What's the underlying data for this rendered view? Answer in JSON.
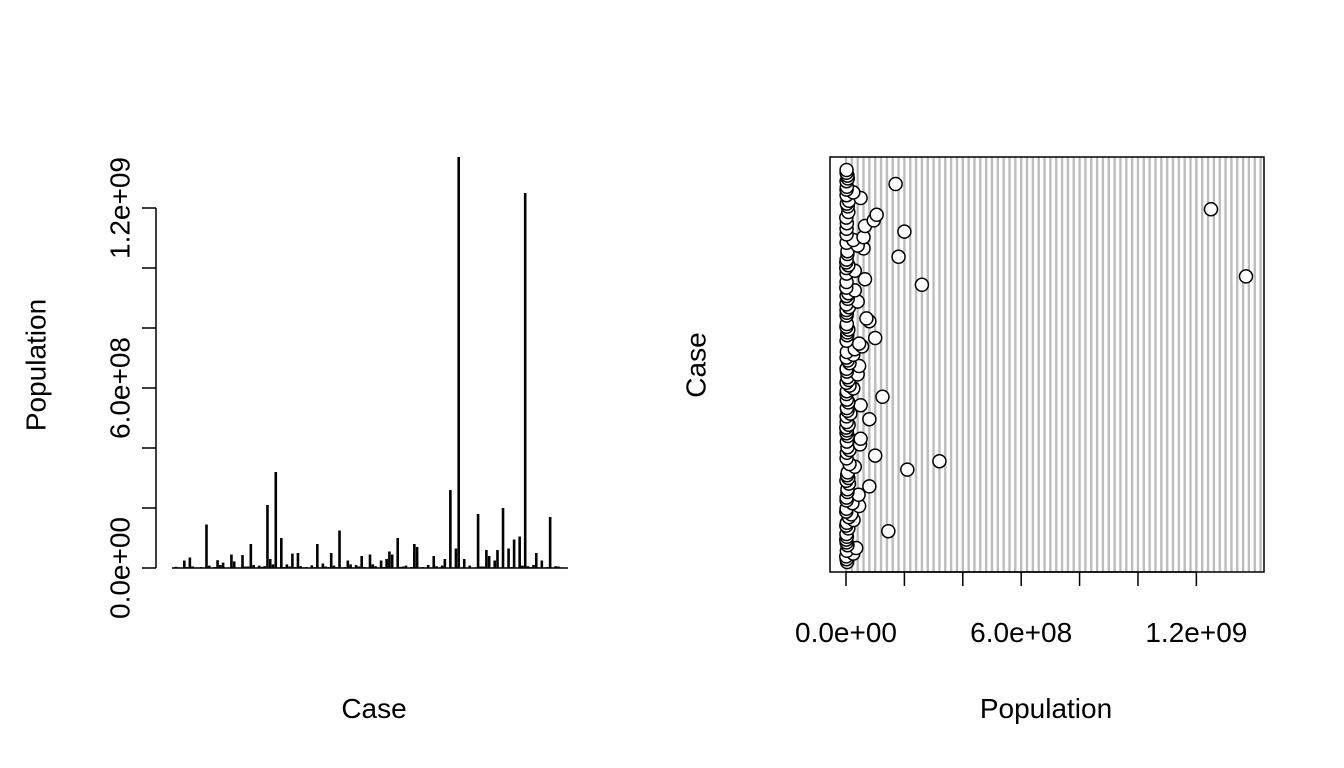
{
  "chart_data": [
    {
      "type": "bar",
      "xlabel": "Case",
      "ylabel": "Population",
      "ylim": [
        0,
        1370000000
      ],
      "y_ticks": [
        {
          "value": 0,
          "label": "0.0e+00"
        },
        {
          "value": 200000000,
          "label": ""
        },
        {
          "value": 400000000,
          "label": ""
        },
        {
          "value": 600000000,
          "label": "6.0e+08"
        },
        {
          "value": 800000000,
          "label": ""
        },
        {
          "value": 1000000000,
          "label": ""
        },
        {
          "value": 1200000000,
          "label": "1.2e+09"
        }
      ],
      "bar_color": "#000000",
      "values": [
        4000000,
        2000000,
        1000000,
        25000000,
        3000000,
        35000000,
        5000000,
        2000000,
        1000000,
        3000000,
        1500000,
        145000000,
        8000000,
        1000000,
        3000000,
        26000000,
        10000000,
        18000000,
        1000000,
        2000000,
        45000000,
        22000000,
        2000000,
        2000000,
        43000000,
        5000000,
        5000000,
        80000000,
        10000000,
        1500000,
        8000000,
        4000000,
        6000000,
        210000000,
        30000000,
        12000000,
        320000000,
        2000000,
        100000000,
        3000000,
        12000000,
        5000000,
        48000000,
        3000000,
        50000000,
        6000000,
        2000000,
        3000000,
        1000000,
        9000000,
        2500000,
        80000000,
        2000000,
        15000000,
        5000000,
        3000000,
        50000000,
        8000000,
        3000000,
        125000000,
        2000000,
        3000000,
        25000000,
        12000000,
        2000000,
        10000000,
        5000000,
        40000000,
        3000000,
        2000000,
        45000000,
        12000000,
        6000000,
        2000000,
        25000000,
        3000000,
        30000000,
        55000000,
        45000000,
        2000000,
        100000000,
        4000000,
        5000000,
        8000000,
        1500000,
        3000000,
        80000000,
        70000000,
        2000000,
        3000000,
        2000000,
        10000000,
        1500000,
        40000000,
        6000000,
        2000000,
        8000000,
        30000000,
        1000000,
        260000000,
        2000000,
        65000000,
        1370000000,
        2000000,
        30000000,
        1000000,
        8000000,
        1000000,
        2000000,
        180000000,
        5000000,
        5000000,
        60000000,
        40000000,
        2000000,
        25000000,
        60000000,
        2000000,
        200000000,
        2000000,
        65000000,
        3000000,
        95000000,
        1000000,
        105000000,
        8000000,
        1250000000,
        6000000,
        3000000,
        10000000,
        50000000,
        2000000,
        25000000,
        2000000,
        3000000,
        170000000,
        2000000,
        6000000,
        5000000,
        2000000,
        2000000
      ]
    },
    {
      "type": "scatter",
      "xlabel": "Population",
      "ylabel": "Case",
      "xlim": [
        0,
        1370000000
      ],
      "x_ticks": [
        {
          "value": 0,
          "label": "0.0e+00"
        },
        {
          "value": 200000000,
          "label": ""
        },
        {
          "value": 400000000,
          "label": ""
        },
        {
          "value": 600000000,
          "label": "6.0e+08"
        },
        {
          "value": 800000000,
          "label": ""
        },
        {
          "value": 1000000000,
          "label": ""
        },
        {
          "value": 1200000000,
          "label": "1.2e+09"
        }
      ],
      "x_gridlines": "vertical, grey, every 20000000",
      "gridline_color": "#bdbdbd",
      "point_fill": "#ffffff",
      "point_stroke": "#000000",
      "x": [
        4000000,
        2000000,
        1000000,
        25000000,
        3000000,
        35000000,
        5000000,
        2000000,
        1000000,
        3000000,
        1500000,
        145000000,
        8000000,
        1000000,
        3000000,
        26000000,
        10000000,
        18000000,
        1000000,
        2000000,
        45000000,
        22000000,
        2000000,
        2000000,
        43000000,
        5000000,
        5000000,
        80000000,
        10000000,
        1500000,
        8000000,
        4000000,
        6000000,
        210000000,
        30000000,
        12000000,
        320000000,
        2000000,
        100000000,
        3000000,
        12000000,
        5000000,
        48000000,
        3000000,
        50000000,
        6000000,
        2000000,
        3000000,
        1000000,
        9000000,
        2500000,
        80000000,
        2000000,
        15000000,
        5000000,
        3000000,
        50000000,
        8000000,
        3000000,
        125000000,
        2000000,
        3000000,
        25000000,
        12000000,
        2000000,
        10000000,
        5000000,
        40000000,
        3000000,
        2000000,
        45000000,
        12000000,
        6000000,
        2000000,
        25000000,
        3000000,
        30000000,
        55000000,
        45000000,
        2000000,
        100000000,
        4000000,
        5000000,
        8000000,
        1500000,
        3000000,
        80000000,
        70000000,
        2000000,
        3000000,
        2000000,
        10000000,
        1500000,
        40000000,
        6000000,
        2000000,
        8000000,
        30000000,
        1000000,
        260000000,
        2000000,
        65000000,
        1370000000,
        2000000,
        30000000,
        1000000,
        8000000,
        1000000,
        2000000,
        180000000,
        5000000,
        5000000,
        60000000,
        40000000,
        2000000,
        25000000,
        60000000,
        2000000,
        200000000,
        2000000,
        65000000,
        3000000,
        95000000,
        1000000,
        105000000,
        8000000,
        1250000000,
        6000000,
        3000000,
        10000000,
        50000000,
        2000000,
        25000000,
        2000000,
        3000000,
        170000000,
        2000000,
        6000000,
        5000000,
        2000000,
        2000000
      ]
    }
  ]
}
